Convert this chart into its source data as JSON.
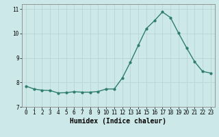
{
  "x": [
    0,
    1,
    2,
    3,
    4,
    5,
    6,
    7,
    8,
    9,
    10,
    11,
    12,
    13,
    14,
    15,
    16,
    17,
    18,
    19,
    20,
    21,
    22,
    23
  ],
  "y": [
    7.85,
    7.73,
    7.68,
    7.67,
    7.57,
    7.58,
    7.62,
    7.6,
    7.6,
    7.63,
    7.73,
    7.73,
    8.18,
    8.82,
    9.52,
    10.2,
    10.52,
    10.88,
    10.65,
    10.02,
    9.42,
    8.85,
    8.45,
    8.38
  ],
  "line_color": "#2e7d6e",
  "marker": "o",
  "marker_size": 2.0,
  "linewidth": 1.0,
  "xlabel": "Humidex (Indice chaleur)",
  "xlim": [
    -0.5,
    23.5
  ],
  "ylim": [
    7.0,
    11.2
  ],
  "yticks": [
    7,
    8,
    9,
    10,
    11
  ],
  "xticks": [
    0,
    1,
    2,
    3,
    4,
    5,
    6,
    7,
    8,
    9,
    10,
    11,
    12,
    13,
    14,
    15,
    16,
    17,
    18,
    19,
    20,
    21,
    22,
    23
  ],
  "bg_color": "#cce8e8",
  "grid_color": "#b8d4d4",
  "tick_label_fontsize": 5.5,
  "xlabel_fontsize": 7.0
}
